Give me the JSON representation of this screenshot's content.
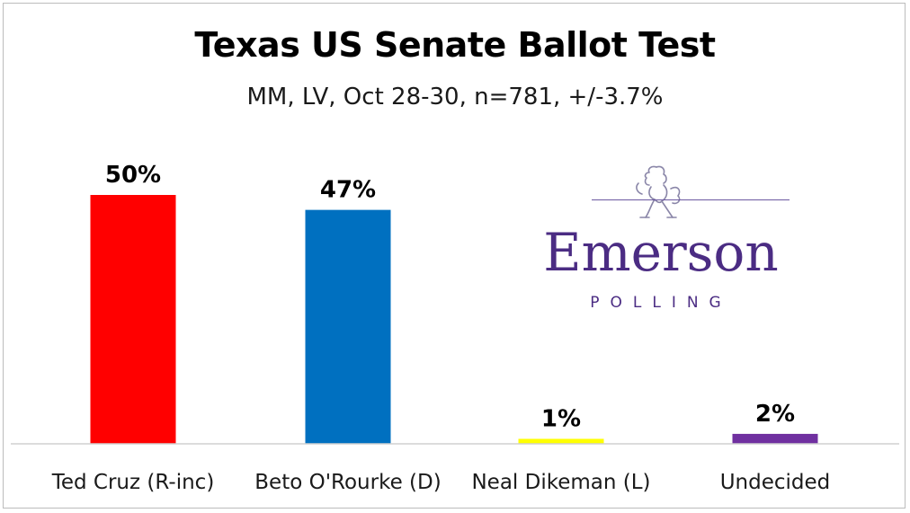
{
  "chart_data": {
    "type": "bar",
    "title": "Texas US Senate Ballot Test",
    "subtitle": "MM, LV, Oct 28-30, n=781, +/-3.7%",
    "categories": [
      "Ted Cruz (R-inc)",
      "Beto O'Rourke (D)",
      "Neal Dikeman (L)",
      "Undecided"
    ],
    "values": [
      50,
      47,
      1,
      2
    ],
    "value_labels": [
      "50%",
      "47%",
      "1%",
      "2%"
    ],
    "colors": [
      "#ff0000",
      "#0070c0",
      "#ffff00",
      "#7030a0"
    ],
    "ylim": [
      0,
      50
    ],
    "grid": false,
    "legend": "none"
  },
  "logo": {
    "name": "Emerson",
    "subtitle": "POLLING",
    "icon": "lion-rampant-crest-icon",
    "color": "#4b2c83"
  }
}
